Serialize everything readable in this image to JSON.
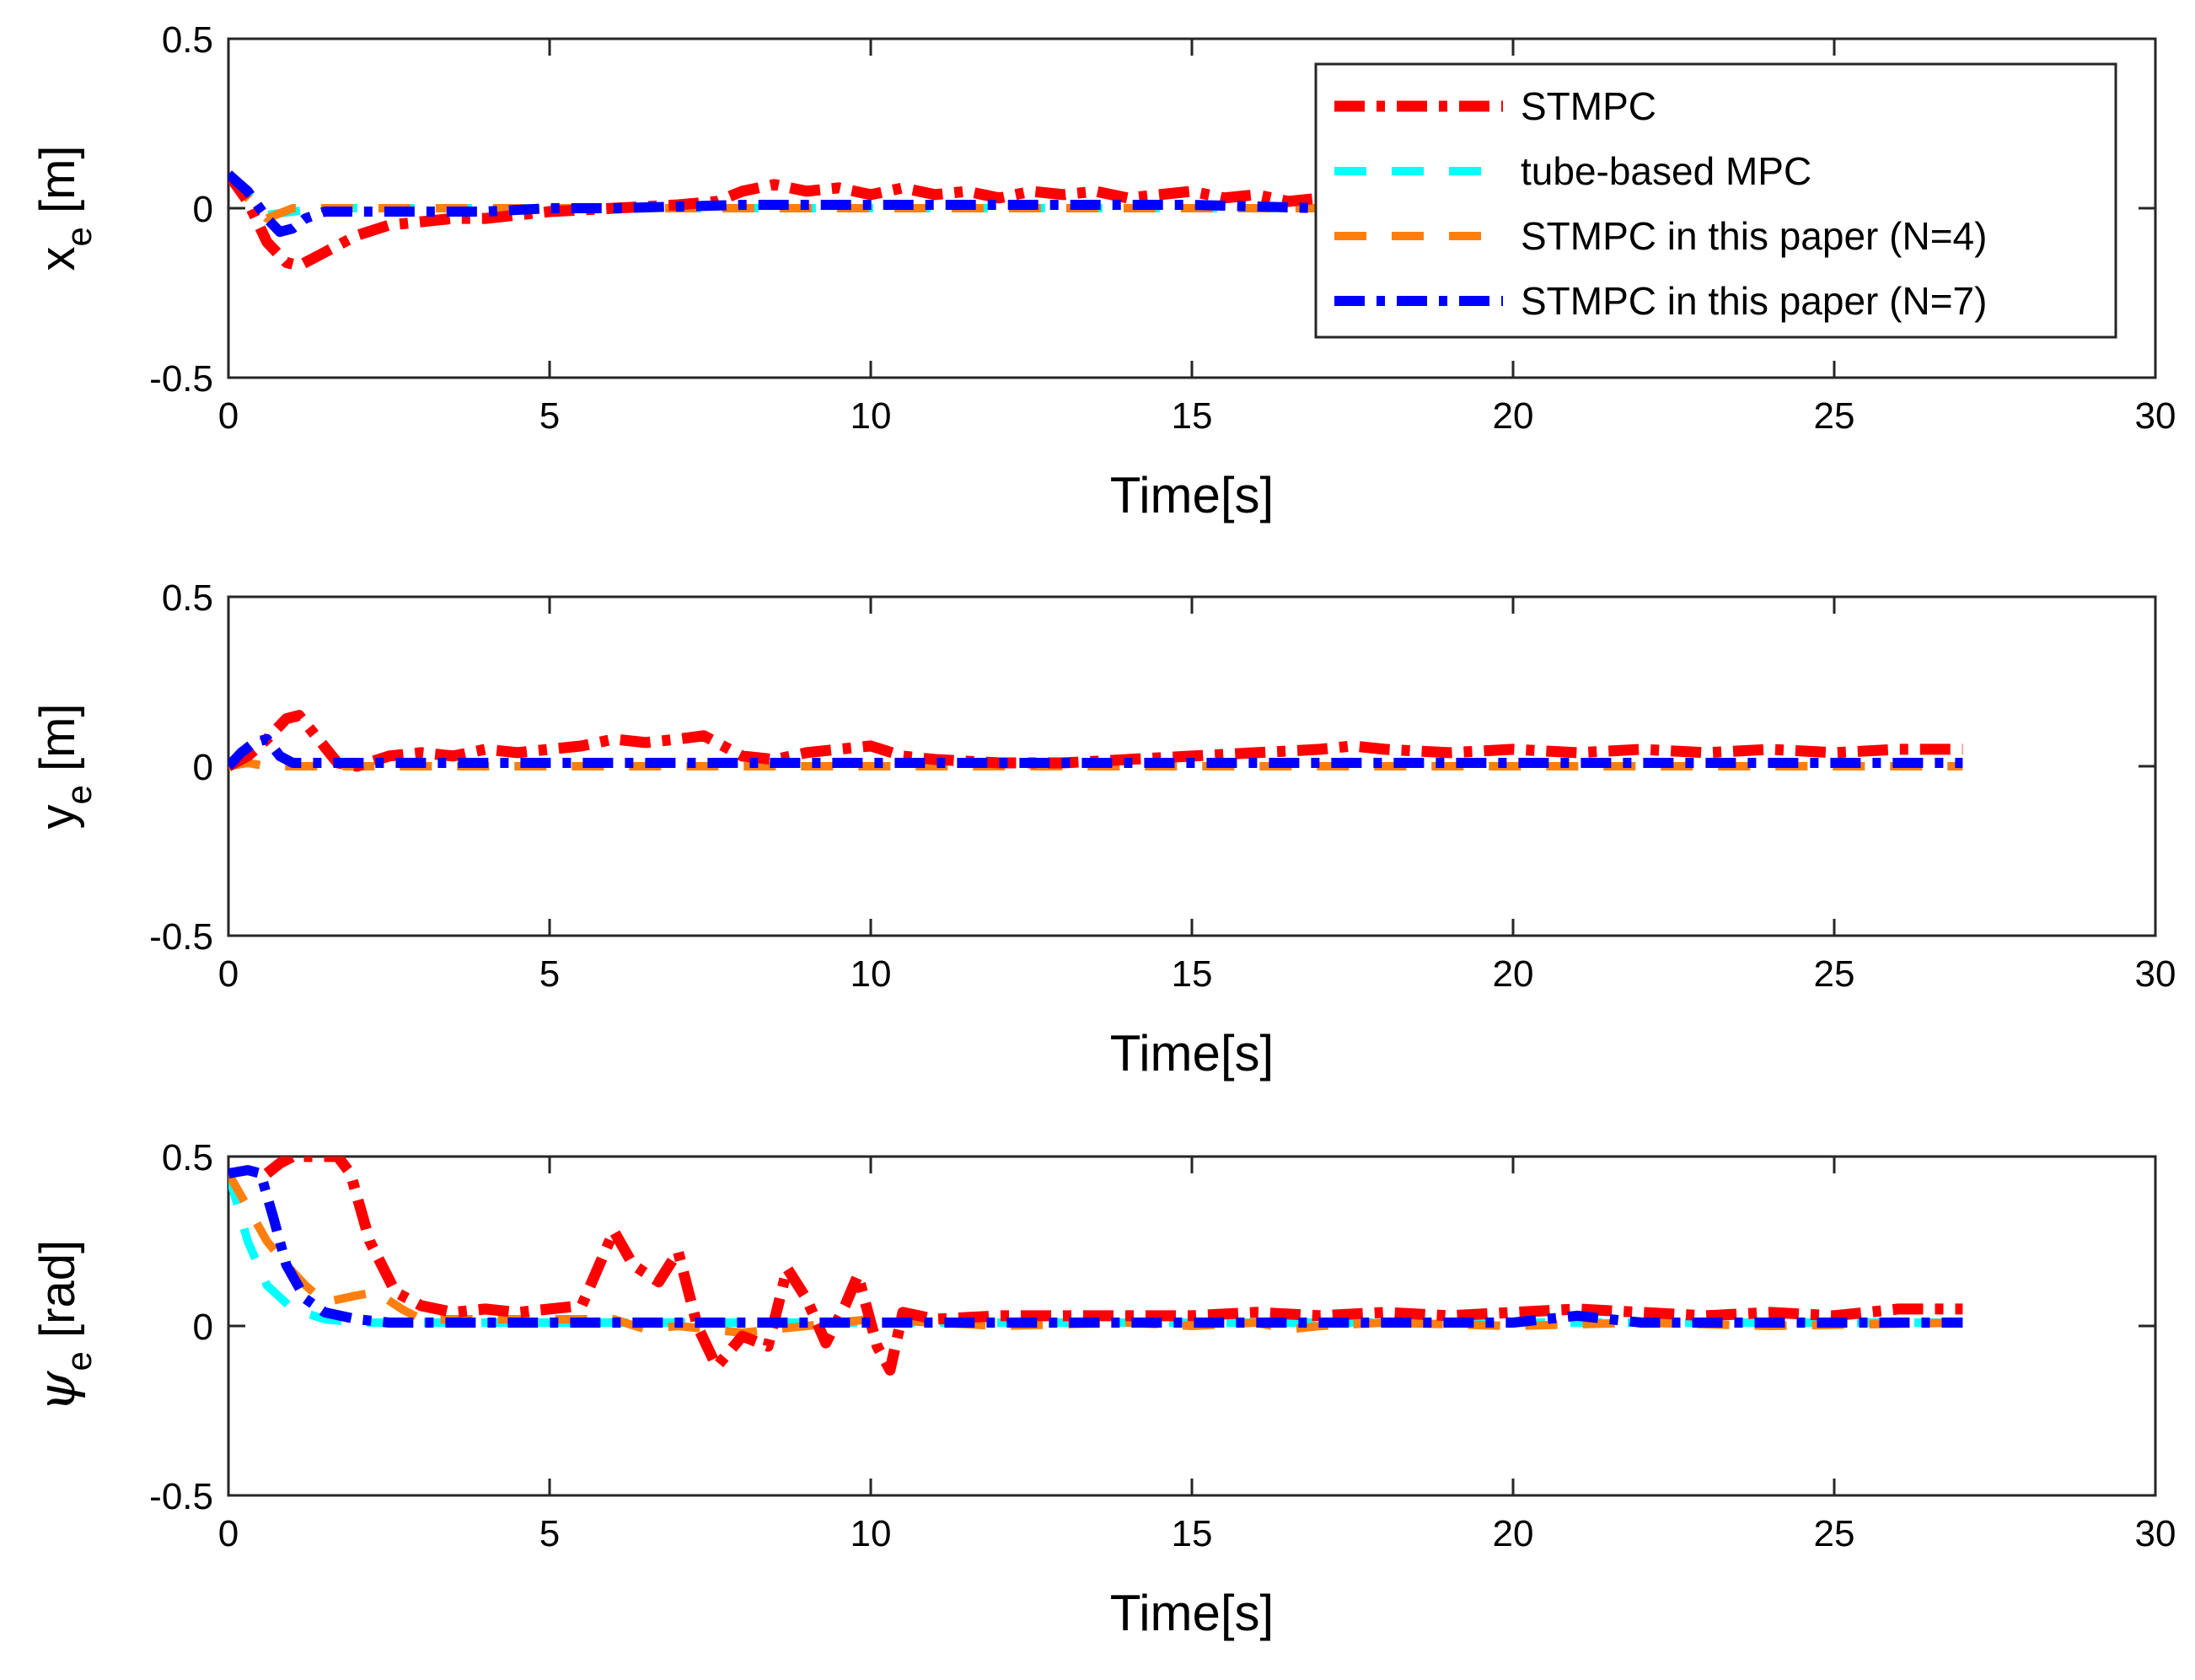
{
  "chart_data": [
    {
      "type": "line",
      "ylabel": {
        "symbol": "x",
        "subscript": "e",
        "unit": "[m]"
      },
      "xlabel": "Time[s]",
      "xlim": [
        0,
        30
      ],
      "ylim": [
        -0.5,
        0.5
      ],
      "xticks": [
        "0",
        "5",
        "10",
        "15",
        "20",
        "25",
        "30"
      ],
      "yticks": [
        "0.5",
        "0",
        "-0.5"
      ],
      "legend": {
        "placement": "top-right"
      },
      "series": [
        {
          "name": "STMPC",
          "x": [
            0,
            0.3,
            0.6,
            0.9,
            1.1,
            1.5,
            2.0,
            2.5,
            3.0,
            3.5,
            4.0,
            5.0,
            6.0,
            7.0,
            7.6,
            8.0,
            8.5,
            9.0,
            9.5,
            10.0,
            10.5,
            11.0,
            11.5,
            12.0,
            12.5,
            13.0,
            13.5,
            14.0,
            14.5,
            15.0,
            15.5,
            16.0,
            16.5,
            17.0
          ],
          "y": [
            0.1,
            0.02,
            -0.1,
            -0.16,
            -0.17,
            -0.13,
            -0.08,
            -0.05,
            -0.04,
            -0.03,
            -0.03,
            -0.01,
            0.0,
            0.01,
            0.02,
            0.05,
            0.07,
            0.05,
            0.06,
            0.04,
            0.06,
            0.04,
            0.05,
            0.03,
            0.05,
            0.04,
            0.05,
            0.03,
            0.04,
            0.05,
            0.03,
            0.04,
            0.02,
            0.03
          ]
        },
        {
          "name": "tube-based MPC",
          "x": [
            0,
            0.3,
            0.6,
            1.0,
            1.5,
            3.0,
            6.0,
            10.0,
            15.0,
            17.0
          ],
          "y": [
            0.1,
            0.04,
            -0.02,
            -0.01,
            0.0,
            0.0,
            0.0,
            0.0,
            0.0,
            0.0
          ]
        },
        {
          "name": "STMPC in this paper (N=4)",
          "x": [
            0,
            0.3,
            0.6,
            1.0,
            1.5,
            3.0,
            6.0,
            10.0,
            15.0,
            17.0
          ],
          "y": [
            0.1,
            0.03,
            -0.03,
            0.0,
            0.0,
            0.0,
            0.0,
            0.0,
            0.0,
            0.0
          ]
        },
        {
          "name": "STMPC in this paper (N=7)",
          "x": [
            0,
            0.3,
            0.6,
            0.8,
            1.0,
            1.2,
            1.5,
            2.0,
            3.0,
            4.0,
            5.0,
            6.0,
            8.0,
            10.0,
            15.0,
            17.0
          ],
          "y": [
            0.1,
            0.05,
            -0.03,
            -0.07,
            -0.06,
            -0.03,
            -0.01,
            -0.01,
            -0.01,
            -0.01,
            0.0,
            0.0,
            0.01,
            0.01,
            0.01,
            0.0
          ]
        }
      ]
    },
    {
      "type": "line",
      "ylabel": {
        "symbol": "y",
        "subscript": "e",
        "unit": "[m]"
      },
      "xlabel": "Time[s]",
      "xlim": [
        0,
        30
      ],
      "ylim": [
        -0.5,
        0.5
      ],
      "xticks": [
        "0",
        "5",
        "10",
        "15",
        "20",
        "25",
        "30"
      ],
      "yticks": [
        "0.5",
        "0",
        "-0.5"
      ],
      "series": [
        {
          "name": "STMPC",
          "x": [
            0,
            0.3,
            0.6,
            0.9,
            1.1,
            1.4,
            1.7,
            2.0,
            2.5,
            3.0,
            3.5,
            4.0,
            4.5,
            5.0,
            5.5,
            6.0,
            6.5,
            7.0,
            7.4,
            8.0,
            8.5,
            9.0,
            9.5,
            10.0,
            10.5,
            11.0,
            12.0,
            13.0,
            14.0,
            15.0,
            16.0,
            17.0,
            17.5,
            18.0,
            19.0,
            20.0,
            21.0,
            22.0,
            23.0,
            24.0,
            25.0,
            26.0,
            27.0
          ],
          "y": [
            0,
            0.03,
            0.08,
            0.14,
            0.15,
            0.08,
            0.01,
            0.0,
            0.03,
            0.04,
            0.03,
            0.05,
            0.04,
            0.05,
            0.06,
            0.08,
            0.07,
            0.08,
            0.09,
            0.03,
            0.02,
            0.04,
            0.05,
            0.06,
            0.03,
            0.02,
            0.01,
            0.01,
            0.02,
            0.03,
            0.04,
            0.05,
            0.06,
            0.05,
            0.04,
            0.05,
            0.04,
            0.05,
            0.04,
            0.05,
            0.04,
            0.05,
            0.05
          ]
        },
        {
          "name": "tube-based MPC",
          "x": [
            0,
            0.3,
            0.6,
            1.0,
            3.0,
            10.0,
            20.0,
            27.0
          ],
          "y": [
            0,
            0.01,
            0.0,
            0.0,
            0.0,
            0.0,
            0.0,
            0.0
          ]
        },
        {
          "name": "STMPC in this paper (N=4)",
          "x": [
            0,
            0.3,
            0.6,
            1.0,
            3.0,
            10.0,
            20.0,
            27.0
          ],
          "y": [
            0,
            0.01,
            0.0,
            0.0,
            0.0,
            0.0,
            0.0,
            0.0
          ]
        },
        {
          "name": "STMPC in this paper (N=7)",
          "x": [
            0,
            0.2,
            0.4,
            0.6,
            0.8,
            1.0,
            1.5,
            3.0,
            6.0,
            10.0,
            15.0,
            20.0,
            27.0
          ],
          "y": [
            0,
            0.04,
            0.07,
            0.08,
            0.03,
            0.01,
            0.01,
            0.01,
            0.01,
            0.01,
            0.01,
            0.01,
            0.01
          ]
        }
      ]
    },
    {
      "type": "line",
      "ylabel": {
        "symbol": "ψ",
        "subscript": "e",
        "unit": "[rad]"
      },
      "xlabel": "Time[s]",
      "xlim": [
        0,
        30
      ],
      "ylim": [
        -0.5,
        0.5
      ],
      "xticks": [
        "0",
        "5",
        "10",
        "15",
        "20",
        "25",
        "30"
      ],
      "yticks": [
        "0.5",
        "0",
        "-0.5"
      ],
      "series": [
        {
          "name": "STMPC",
          "x": [
            0.6,
            0.8,
            1.0,
            1.7,
            1.9,
            2.2,
            2.6,
            3.0,
            3.5,
            4.0,
            4.5,
            5.0,
            5.5,
            6.0,
            6.3,
            6.7,
            7.0,
            7.3,
            7.6,
            8.0,
            8.4,
            8.7,
            9.0,
            9.3,
            9.6,
            9.8,
            10.1,
            10.3,
            10.5,
            11.0,
            12.0,
            13.0,
            14.0,
            15.0,
            16.0,
            17.0,
            18.0,
            19.0,
            20.0,
            21.0,
            22.0,
            23.0,
            24.0,
            25.0,
            26.0,
            27.0
          ],
          "y": [
            0.45,
            0.48,
            0.5,
            0.5,
            0.45,
            0.25,
            0.1,
            0.06,
            0.04,
            0.05,
            0.04,
            0.05,
            0.06,
            0.28,
            0.18,
            0.13,
            0.22,
            0.0,
            -0.12,
            -0.03,
            -0.06,
            0.17,
            0.08,
            -0.05,
            0.06,
            0.15,
            -0.06,
            -0.13,
            0.04,
            0.02,
            0.03,
            0.03,
            0.03,
            0.03,
            0.04,
            0.03,
            0.04,
            0.03,
            0.04,
            0.05,
            0.04,
            0.03,
            0.04,
            0.03,
            0.05,
            0.05
          ]
        },
        {
          "name": "tube-based MPC",
          "x": [
            0,
            0.3,
            0.6,
            1.0,
            1.5,
            2.0,
            3.0,
            5.0,
            10.0,
            20.0,
            27.0
          ],
          "y": [
            0.45,
            0.25,
            0.12,
            0.05,
            0.02,
            0.01,
            0.01,
            0.01,
            0.01,
            0.01,
            0.01
          ]
        },
        {
          "name": "STMPC in this paper (N=4)",
          "x": [
            0,
            0.3,
            0.6,
            0.9,
            1.2,
            1.5,
            2.0,
            2.3,
            2.7,
            3.0,
            4.0,
            5.0,
            6.0,
            6.5,
            7.0,
            8.0,
            9.0,
            10.0,
            12.0,
            14.0,
            15.0,
            16.0,
            16.5,
            17.0,
            18.0,
            20.0,
            22.0,
            24.0,
            27.0
          ],
          "y": [
            0.45,
            0.35,
            0.25,
            0.18,
            0.12,
            0.07,
            0.09,
            0.1,
            0.05,
            0.02,
            0.02,
            0.02,
            0.02,
            -0.01,
            0.0,
            -0.02,
            0.0,
            0.02,
            0.0,
            0.01,
            0.0,
            0.01,
            -0.01,
            0.0,
            0.01,
            0.0,
            0.01,
            0.0,
            0.01
          ]
        },
        {
          "name": "STMPC in this paper (N=7)",
          "x": [
            0,
            0.3,
            0.5,
            0.7,
            0.9,
            1.2,
            1.5,
            2.0,
            2.5,
            3.0,
            5.0,
            10.0,
            15.0,
            20.0,
            21.0,
            22.0,
            27.0
          ],
          "y": [
            0.45,
            0.46,
            0.45,
            0.32,
            0.18,
            0.08,
            0.04,
            0.02,
            0.01,
            0.01,
            0.01,
            0.01,
            0.01,
            0.01,
            0.03,
            0.01,
            0.01
          ]
        }
      ]
    }
  ],
  "legend_entries": [
    {
      "label": "STMPC",
      "color": "#ff0000",
      "dash": "dashdot"
    },
    {
      "label": "tube-based MPC",
      "color": "#00ffff",
      "dash": "dash"
    },
    {
      "label": "STMPC in this paper (N=4)",
      "color": "#ff7f0e",
      "dash": "dash"
    },
    {
      "label": "STMPC in this paper (N=7)",
      "color": "#0000ff",
      "dash": "dashdot"
    }
  ]
}
